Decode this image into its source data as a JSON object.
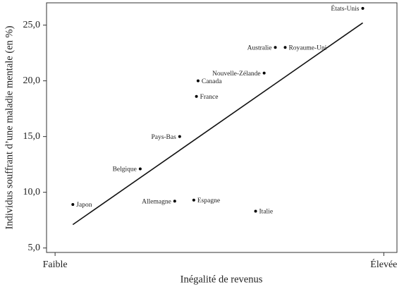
{
  "chart_data": {
    "type": "scatter",
    "x_label": "Inégalité de revenus",
    "y_label": "Individus souffrant d’une maladie mentale (en %)",
    "labels": [
      "Japon",
      "Belgique",
      "Allemagne",
      "Espagne",
      "Pays-Bas",
      "France",
      "Canada",
      "Nouvelle-Zélande",
      "Australie",
      "Royaume-Uni",
      "Italie",
      "États-Unis"
    ],
    "x": [
      0.54,
      2.59,
      3.64,
      4.22,
      3.79,
      4.3,
      4.35,
      6.36,
      6.7,
      7.0,
      6.1,
      9.36
    ],
    "y": [
      8.9,
      12.1,
      9.2,
      9.3,
      15.0,
      18.6,
      20.0,
      20.7,
      23.0,
      23.0,
      8.3,
      26.5
    ],
    "color": "#000000",
    "trend": {
      "x": [
        0.54,
        9.36
      ],
      "y": [
        7.1,
        25.2
      ]
    },
    "xlim": [
      -0.26,
      10.4
    ],
    "xticks": [
      {
        "value": 0,
        "label": "Faible"
      },
      {
        "value": 10,
        "label": "Élevée"
      }
    ],
    "ylim": [
      4.6,
      27
    ],
    "yticks": [
      {
        "value": 5,
        "label": "5,0"
      },
      {
        "value": 10,
        "label": "10,0"
      },
      {
        "value": 15,
        "label": "15,0"
      },
      {
        "value": 20,
        "label": "20,0"
      },
      {
        "value": 25,
        "label": "25,0"
      }
    ]
  }
}
